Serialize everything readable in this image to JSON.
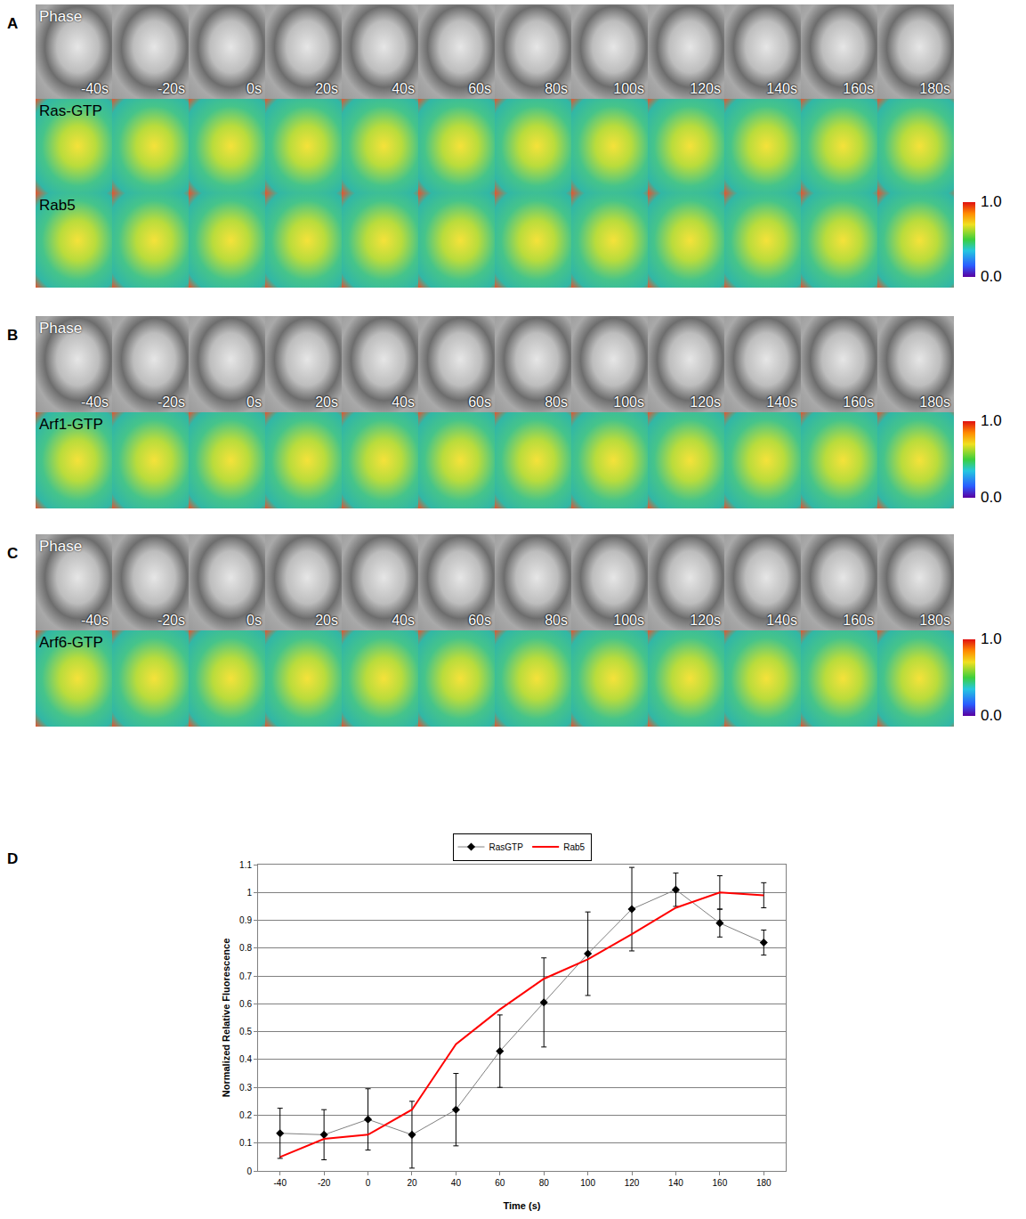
{
  "panels": [
    {
      "letter": "A",
      "rows": [
        "Phase",
        "Ras-GTP",
        "Rab5"
      ],
      "times": [
        "-40s",
        "-20s",
        "0s",
        "20s",
        "40s",
        "60s",
        "80s",
        "100s",
        "120s",
        "140s",
        "160s",
        "180s"
      ],
      "colorbar": {
        "range": [
          0,
          1
        ],
        "ticks": [
          {
            "value": 1,
            "label": "1.0"
          },
          {
            "value": 0,
            "label": "0.0"
          }
        ]
      }
    },
    {
      "letter": "B",
      "rows": [
        "Phase",
        "Arf1-GTP"
      ],
      "times": [
        "-40s",
        "-20s",
        "0s",
        "20s",
        "40s",
        "60s",
        "80s",
        "100s",
        "120s",
        "140s",
        "160s",
        "180s"
      ],
      "colorbar": {
        "range": [
          0,
          1
        ],
        "ticks": [
          {
            "value": 1,
            "label": "1.0"
          },
          {
            "value": 0,
            "label": "0.0"
          }
        ]
      }
    },
    {
      "letter": "C",
      "rows": [
        "Phase",
        "Arf6-GTP"
      ],
      "times": [
        "-40s",
        "-20s",
        "0s",
        "20s",
        "40s",
        "60s",
        "80s",
        "100s",
        "120s",
        "140s",
        "160s",
        "180s"
      ],
      "colorbar": {
        "range": [
          0,
          1
        ],
        "ticks": [
          {
            "value": 1,
            "label": "1.0"
          },
          {
            "value": 0,
            "label": "0.0"
          }
        ]
      }
    }
  ],
  "chart_data": {
    "letter": "D",
    "type": "line",
    "x_label": "Time (s)",
    "y_label": "Normalized Relative Fluorescence",
    "x": [
      -40,
      -20,
      0,
      20,
      40,
      60,
      80,
      100,
      120,
      140,
      160,
      180
    ],
    "series": [
      {
        "name": "RasGTP",
        "color": "#000000",
        "line_color": "#808080",
        "marker": "diamond",
        "line_style": "solid",
        "values": [
          0.135,
          0.13,
          0.185,
          0.13,
          0.22,
          0.43,
          0.605,
          0.78,
          0.94,
          1.01,
          0.89,
          0.82
        ],
        "errors": [
          0.09,
          0.09,
          0.11,
          0.12,
          0.13,
          0.13,
          0.16,
          0.15,
          0.15,
          0.06,
          0.05,
          0.045
        ]
      },
      {
        "name": "Rab5",
        "color": "#ff0000",
        "marker": "none",
        "line_style": "solid",
        "values": [
          0.05,
          0.115,
          0.13,
          0.22,
          0.455,
          0.58,
          0.69,
          0.76,
          0.85,
          0.945,
          1.0,
          0.99
        ],
        "errors": [
          null,
          null,
          null,
          null,
          null,
          null,
          null,
          null,
          null,
          null,
          0.06,
          0.045
        ]
      }
    ],
    "xlim": [
      -50,
      190
    ],
    "xticks": [
      -40,
      -20,
      0,
      20,
      40,
      60,
      80,
      100,
      120,
      140,
      160,
      180
    ],
    "ylim": [
      0,
      1.1
    ],
    "yticks": [
      0,
      0.1,
      0.2,
      0.3,
      0.4,
      0.5,
      0.6,
      0.7,
      0.8,
      0.9,
      1,
      1.1
    ],
    "grid": true,
    "legend": "top"
  }
}
